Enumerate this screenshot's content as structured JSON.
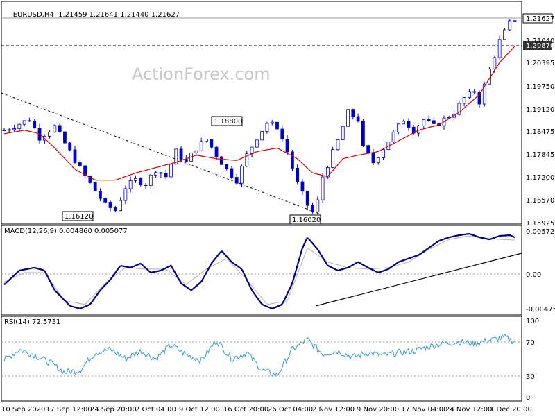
{
  "chart_data": [
    {
      "type": "candlestick",
      "panel": "price",
      "title": "EURUSD,H4",
      "ohlc": "1.21459 1.21641 1.21440 1.21627",
      "watermark": "ActionForex.com",
      "ylim": [
        1.15925,
        1.22035
      ],
      "y_ticks": [
        "1.21040",
        "1.20395",
        "1.19750",
        "1.19120",
        "1.18475",
        "1.17845",
        "1.17200",
        "1.16570",
        "1.15925"
      ],
      "current_price": "1.21627",
      "reference_line": "1.20870",
      "annotations": [
        "1.16120",
        "1.18800",
        "1.16020"
      ],
      "x_labels": [
        "10 Sep 2020",
        "17 Sep 12:00",
        "24 Sep 20:00",
        "2 Oct 04:00",
        "9 Oct 12:00",
        "16 Oct 20:00",
        "26 Oct 04:00",
        "2 Nov 12:00",
        "9 Nov 20:00",
        "17 Nov 04:00",
        "24 Nov 12:00",
        "1 Dec 20:00"
      ],
      "path_keys": [
        [
          0,
          1.185
        ],
        [
          5,
          1.188
        ],
        [
          7,
          1.183
        ],
        [
          10,
          1.186
        ],
        [
          13,
          1.179
        ],
        [
          16,
          1.172
        ],
        [
          18,
          1.168
        ],
        [
          20,
          1.164
        ],
        [
          22,
          1.1625
        ],
        [
          24,
          1.169
        ],
        [
          26,
          1.171
        ],
        [
          28,
          1.17
        ],
        [
          30,
          1.174
        ],
        [
          32,
          1.172
        ],
        [
          34,
          1.179
        ],
        [
          36,
          1.176
        ],
        [
          38,
          1.18
        ],
        [
          40,
          1.1825
        ],
        [
          42,
          1.178
        ],
        [
          44,
          1.174
        ],
        [
          46,
          1.171
        ],
        [
          48,
          1.178
        ],
        [
          50,
          1.183
        ],
        [
          52,
          1.187
        ],
        [
          54,
          1.186
        ],
        [
          56,
          1.179
        ],
        [
          58,
          1.17
        ],
        [
          60,
          1.164
        ],
        [
          61,
          1.162
        ],
        [
          62,
          1.165
        ],
        [
          63,
          1.172
        ],
        [
          66,
          1.182
        ],
        [
          68,
          1.19
        ],
        [
          70,
          1.188
        ],
        [
          71,
          1.18
        ],
        [
          73,
          1.176
        ],
        [
          75,
          1.18
        ],
        [
          77,
          1.184
        ],
        [
          79,
          1.188
        ],
        [
          81,
          1.185
        ],
        [
          83,
          1.188
        ],
        [
          85,
          1.186
        ],
        [
          87,
          1.188
        ],
        [
          89,
          1.19
        ],
        [
          91,
          1.194
        ],
        [
          93,
          1.196
        ],
        [
          94,
          1.193
        ],
        [
          96,
          1.202
        ],
        [
          98,
          1.21
        ],
        [
          100,
          1.215
        ],
        [
          101,
          1.2162
        ]
      ],
      "ma_keys": [
        [
          0,
          1.184
        ],
        [
          4,
          1.185
        ],
        [
          7,
          1.184
        ],
        [
          10,
          1.18
        ],
        [
          14,
          1.174
        ],
        [
          18,
          1.171
        ],
        [
          22,
          1.171
        ],
        [
          26,
          1.173
        ],
        [
          30,
          1.1745
        ],
        [
          34,
          1.176
        ],
        [
          38,
          1.178
        ],
        [
          42,
          1.177
        ],
        [
          46,
          1.1765
        ],
        [
          50,
          1.179
        ],
        [
          54,
          1.18
        ],
        [
          58,
          1.177
        ],
        [
          61,
          1.173
        ],
        [
          64,
          1.172
        ],
        [
          67,
          1.177
        ],
        [
          70,
          1.178
        ],
        [
          74,
          1.179
        ],
        [
          78,
          1.182
        ],
        [
          82,
          1.185
        ],
        [
          86,
          1.1865
        ],
        [
          90,
          1.19
        ],
        [
          94,
          1.195
        ],
        [
          98,
          1.204
        ],
        [
          101,
          1.2085
        ]
      ]
    },
    {
      "type": "line",
      "panel": "macd",
      "title": "MACD(12,26,9) 0.004860 0.005077",
      "ylim": [
        -0.0051,
        0.006
      ],
      "y_ticks": [
        "0.005725",
        "0.00",
        "-0.004755"
      ],
      "main_keys": [
        [
          0,
          -0.0012
        ],
        [
          3,
          0.0008
        ],
        [
          6,
          0.0012
        ],
        [
          8,
          0.0008
        ],
        [
          10,
          -0.002
        ],
        [
          13,
          -0.0042
        ],
        [
          15,
          -0.0046
        ],
        [
          17,
          -0.004
        ],
        [
          19,
          -0.002
        ],
        [
          21,
          -0.0005
        ],
        [
          23,
          0.0015
        ],
        [
          25,
          0.0012
        ],
        [
          27,
          0.0018
        ],
        [
          29,
          0.0005
        ],
        [
          31,
          0.0008
        ],
        [
          33,
          0.0015
        ],
        [
          35,
          -0.001
        ],
        [
          37,
          -0.002
        ],
        [
          39,
          -0.0008
        ],
        [
          41,
          0.0018
        ],
        [
          43,
          0.0036
        ],
        [
          45,
          0.002
        ],
        [
          47,
          0.001
        ],
        [
          49,
          -0.002
        ],
        [
          51,
          -0.004
        ],
        [
          53,
          -0.0046
        ],
        [
          55,
          -0.004
        ],
        [
          57,
          -0.001
        ],
        [
          59,
          0.004
        ],
        [
          60,
          0.0055
        ],
        [
          62,
          0.0038
        ],
        [
          64,
          0.0015
        ],
        [
          66,
          0.0008
        ],
        [
          68,
          0.0012
        ],
        [
          70,
          0.002
        ],
        [
          72,
          0.0012
        ],
        [
          74,
          0.0005
        ],
        [
          76,
          0.001
        ],
        [
          78,
          0.002
        ],
        [
          80,
          0.0025
        ],
        [
          82,
          0.003
        ],
        [
          84,
          0.004
        ],
        [
          86,
          0.005
        ],
        [
          88,
          0.0055
        ],
        [
          90,
          0.0058
        ],
        [
          92,
          0.006
        ],
        [
          94,
          0.0055
        ],
        [
          96,
          0.0052
        ],
        [
          98,
          0.0057
        ],
        [
          100,
          0.0058
        ],
        [
          101,
          0.0055
        ]
      ],
      "signal_keys": [
        [
          0,
          -0.0008
        ],
        [
          4,
          0.0005
        ],
        [
          8,
          0.0005
        ],
        [
          12,
          -0.0035
        ],
        [
          16,
          -0.004
        ],
        [
          20,
          -0.001
        ],
        [
          24,
          0.0012
        ],
        [
          28,
          0.001
        ],
        [
          32,
          0.001
        ],
        [
          36,
          -0.0012
        ],
        [
          40,
          0.001
        ],
        [
          44,
          0.0025
        ],
        [
          48,
          -0.0005
        ],
        [
          52,
          -0.004
        ],
        [
          56,
          -0.0035
        ],
        [
          60,
          0.004
        ],
        [
          64,
          0.002
        ],
        [
          68,
          0.0012
        ],
        [
          72,
          0.001
        ],
        [
          76,
          0.0012
        ],
        [
          80,
          0.002
        ],
        [
          84,
          0.0038
        ],
        [
          88,
          0.0052
        ],
        [
          92,
          0.0057
        ],
        [
          96,
          0.0053
        ],
        [
          101,
          0.0051
        ]
      ]
    },
    {
      "type": "line",
      "panel": "rsi",
      "title": "RSI(14) 72.5731",
      "ylim": [
        0,
        100
      ],
      "y_ticks": [
        "100",
        "70",
        "30",
        "0"
      ],
      "levels": [
        70,
        30
      ],
      "rsi_keys": [
        [
          0,
          48
        ],
        [
          3,
          62
        ],
        [
          6,
          55
        ],
        [
          9,
          45
        ],
        [
          12,
          32
        ],
        [
          15,
          35
        ],
        [
          18,
          58
        ],
        [
          21,
          62
        ],
        [
          24,
          50
        ],
        [
          27,
          60
        ],
        [
          30,
          50
        ],
        [
          33,
          68
        ],
        [
          36,
          55
        ],
        [
          39,
          48
        ],
        [
          42,
          74
        ],
        [
          45,
          50
        ],
        [
          48,
          58
        ],
        [
          51,
          35
        ],
        [
          54,
          28
        ],
        [
          57,
          62
        ],
        [
          60,
          75
        ],
        [
          63,
          56
        ],
        [
          66,
          60
        ],
        [
          69,
          52
        ],
        [
          72,
          58
        ],
        [
          75,
          54
        ],
        [
          78,
          58
        ],
        [
          81,
          60
        ],
        [
          84,
          66
        ],
        [
          87,
          70
        ],
        [
          90,
          72
        ],
        [
          93,
          70
        ],
        [
          96,
          74
        ],
        [
          99,
          78
        ],
        [
          101,
          72
        ]
      ]
    }
  ],
  "colors": {
    "candle_stroke": "#0000cc",
    "ma_line": "#cc0000",
    "macd_main": "#00007f",
    "macd_signal": "#b0b0b0",
    "rsi_line": "#3399cc",
    "trend_line": "#000000",
    "watermark": "#c0c0c0"
  }
}
